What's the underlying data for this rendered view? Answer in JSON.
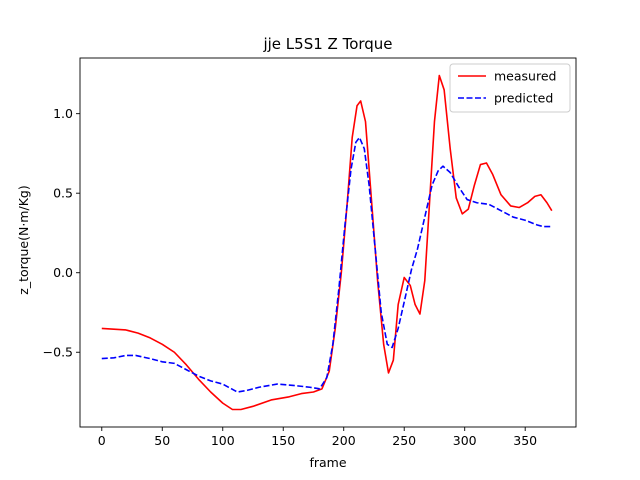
{
  "chart_data": {
    "type": "line",
    "title": "jje L5S1 Z Torque",
    "xlabel": "frame",
    "ylabel": "z_torque(N·m/Kg)",
    "xlim": [
      -18,
      392
    ],
    "ylim": [
      -0.97,
      1.35
    ],
    "xticks": [
      0,
      50,
      100,
      150,
      200,
      250,
      300,
      350
    ],
    "yticks": [
      -0.5,
      0.0,
      0.5,
      1.0
    ],
    "ytick_labels": [
      "−0.5",
      "0.0",
      "0.5",
      "1.0"
    ],
    "grid": false,
    "legend_position": "top-right",
    "series": [
      {
        "name": "measured",
        "color": "#ff0000",
        "style": "solid",
        "points": [
          [
            0,
            -0.35
          ],
          [
            10,
            -0.355
          ],
          [
            20,
            -0.36
          ],
          [
            30,
            -0.38
          ],
          [
            40,
            -0.41
          ],
          [
            50,
            -0.45
          ],
          [
            60,
            -0.5
          ],
          [
            70,
            -0.58
          ],
          [
            80,
            -0.67
          ],
          [
            90,
            -0.75
          ],
          [
            100,
            -0.82
          ],
          [
            108,
            -0.86
          ],
          [
            115,
            -0.86
          ],
          [
            125,
            -0.84
          ],
          [
            140,
            -0.8
          ],
          [
            155,
            -0.78
          ],
          [
            165,
            -0.76
          ],
          [
            175,
            -0.75
          ],
          [
            182,
            -0.73
          ],
          [
            188,
            -0.62
          ],
          [
            193,
            -0.35
          ],
          [
            198,
            0.0
          ],
          [
            203,
            0.45
          ],
          [
            207,
            0.85
          ],
          [
            211,
            1.05
          ],
          [
            214,
            1.08
          ],
          [
            218,
            0.95
          ],
          [
            222,
            0.55
          ],
          [
            228,
            -0.05
          ],
          [
            233,
            -0.45
          ],
          [
            237,
            -0.63
          ],
          [
            241,
            -0.55
          ],
          [
            245,
            -0.2
          ],
          [
            250,
            -0.03
          ],
          [
            255,
            -0.08
          ],
          [
            259,
            -0.2
          ],
          [
            263,
            -0.26
          ],
          [
            267,
            -0.05
          ],
          [
            271,
            0.45
          ],
          [
            275,
            0.95
          ],
          [
            279,
            1.24
          ],
          [
            283,
            1.15
          ],
          [
            288,
            0.78
          ],
          [
            293,
            0.47
          ],
          [
            298,
            0.37
          ],
          [
            303,
            0.4
          ],
          [
            308,
            0.55
          ],
          [
            313,
            0.68
          ],
          [
            318,
            0.69
          ],
          [
            323,
            0.62
          ],
          [
            330,
            0.49
          ],
          [
            338,
            0.42
          ],
          [
            345,
            0.41
          ],
          [
            352,
            0.44
          ],
          [
            358,
            0.48
          ],
          [
            363,
            0.49
          ],
          [
            368,
            0.44
          ],
          [
            372,
            0.39
          ]
        ]
      },
      {
        "name": "predicted",
        "color": "#0000ff",
        "style": "dashed",
        "points": [
          [
            0,
            -0.54
          ],
          [
            10,
            -0.535
          ],
          [
            20,
            -0.52
          ],
          [
            28,
            -0.52
          ],
          [
            40,
            -0.54
          ],
          [
            50,
            -0.56
          ],
          [
            60,
            -0.57
          ],
          [
            70,
            -0.61
          ],
          [
            80,
            -0.65
          ],
          [
            90,
            -0.68
          ],
          [
            100,
            -0.7
          ],
          [
            112,
            -0.75
          ],
          [
            120,
            -0.74
          ],
          [
            130,
            -0.72
          ],
          [
            145,
            -0.7
          ],
          [
            160,
            -0.71
          ],
          [
            172,
            -0.72
          ],
          [
            180,
            -0.73
          ],
          [
            186,
            -0.66
          ],
          [
            191,
            -0.45
          ],
          [
            196,
            -0.1
          ],
          [
            201,
            0.3
          ],
          [
            206,
            0.65
          ],
          [
            210,
            0.82
          ],
          [
            213,
            0.85
          ],
          [
            217,
            0.78
          ],
          [
            221,
            0.55
          ],
          [
            226,
            0.15
          ],
          [
            231,
            -0.25
          ],
          [
            236,
            -0.45
          ],
          [
            240,
            -0.47
          ],
          [
            245,
            -0.35
          ],
          [
            251,
            -0.15
          ],
          [
            256,
            0.02
          ],
          [
            261,
            0.15
          ],
          [
            267,
            0.35
          ],
          [
            273,
            0.55
          ],
          [
            278,
            0.64
          ],
          [
            282,
            0.67
          ],
          [
            288,
            0.63
          ],
          [
            295,
            0.54
          ],
          [
            302,
            0.46
          ],
          [
            310,
            0.44
          ],
          [
            320,
            0.43
          ],
          [
            330,
            0.39
          ],
          [
            340,
            0.35
          ],
          [
            350,
            0.33
          ],
          [
            360,
            0.3
          ],
          [
            365,
            0.29
          ],
          [
            372,
            0.29
          ]
        ]
      }
    ]
  }
}
